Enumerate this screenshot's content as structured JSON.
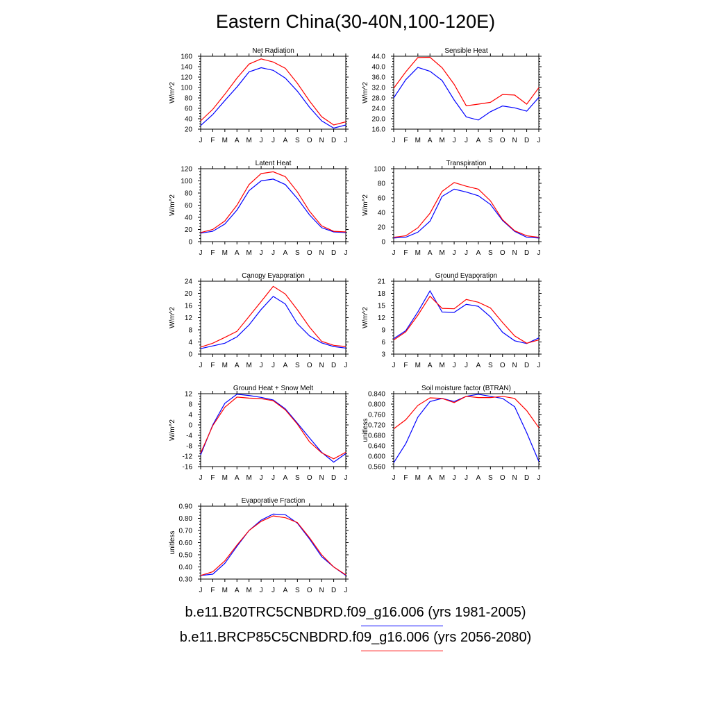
{
  "title": "Eastern China(30-40N,100-120E)",
  "months": [
    "J",
    "F",
    "M",
    "A",
    "M",
    "J",
    "J",
    "A",
    "S",
    "O",
    "N",
    "D",
    "J"
  ],
  "legend": [
    {
      "label": "b.e11.B20TRC5CNBDRD.f09_g16.006 (yrs 1981-2005)",
      "color": "#0000ff"
    },
    {
      "label": "b.e11.BRCP85C5CNBDRD.f09_g16.006 (yrs 2056-2080)",
      "color": "#ff0000"
    }
  ],
  "chart_data": [
    {
      "type": "line",
      "title": "Net Radiation",
      "ylabel": "W/m^2",
      "ylim": [
        20,
        160
      ],
      "yticks": [
        "20",
        "40",
        "60",
        "80",
        "100",
        "120",
        "140",
        "160"
      ],
      "series": [
        {
          "color": "#0000ff",
          "values": [
            27,
            48,
            75,
            101,
            130,
            138,
            133,
            118,
            93,
            62,
            36,
            22,
            28
          ]
        },
        {
          "color": "#ff0000",
          "values": [
            36,
            58,
            87,
            118,
            145,
            155,
            149,
            137,
            108,
            74,
            44,
            28,
            34
          ]
        }
      ]
    },
    {
      "type": "line",
      "title": "Sensible Heat",
      "ylabel": "W/m^2",
      "ylim": [
        16,
        44
      ],
      "yticks": [
        "16.0",
        "20.0",
        "24.0",
        "28.0",
        "32.0",
        "36.0",
        "40.0",
        "44.0"
      ],
      "series": [
        {
          "color": "#0000ff",
          "values": [
            28,
            35,
            39.7,
            38.2,
            34.7,
            27.2,
            20.7,
            19.5,
            22.7,
            24.9,
            24.2,
            22.9,
            28.2
          ]
        },
        {
          "color": "#ff0000",
          "values": [
            31.7,
            38,
            43.5,
            43.6,
            39.6,
            33.2,
            25,
            25.6,
            26.3,
            29.3,
            29.1,
            25.6,
            31.9
          ]
        }
      ]
    },
    {
      "type": "line",
      "title": "Latent Heat",
      "ylabel": "W/m^2",
      "ylim": [
        0,
        120
      ],
      "yticks": [
        "0",
        "20",
        "40",
        "60",
        "80",
        "100",
        "120"
      ],
      "series": [
        {
          "color": "#0000ff",
          "values": [
            14,
            17,
            29,
            52,
            84,
            100,
            103,
            94,
            71,
            44,
            23,
            16,
            15
          ]
        },
        {
          "color": "#ff0000",
          "values": [
            15,
            20,
            34,
            60,
            94,
            112,
            115,
            107,
            82,
            50,
            26,
            17,
            16
          ]
        }
      ]
    },
    {
      "type": "line",
      "title": "Transpiration",
      "ylabel": "W/m^2",
      "ylim": [
        0,
        100
      ],
      "yticks": [
        "0",
        "20",
        "40",
        "60",
        "80",
        "100"
      ],
      "series": [
        {
          "color": "#0000ff",
          "values": [
            5,
            6,
            13,
            28,
            62,
            72,
            68,
            63,
            51,
            29,
            14,
            6,
            5
          ]
        },
        {
          "color": "#ff0000",
          "values": [
            6,
            8,
            19,
            39,
            69,
            81,
            76,
            72,
            56,
            30,
            15,
            8,
            6
          ]
        }
      ]
    },
    {
      "type": "line",
      "title": "Canopy Evaporation",
      "ylabel": "W/m^2",
      "ylim": [
        0,
        24
      ],
      "yticks": [
        "0",
        "4",
        "8",
        "12",
        "16",
        "20",
        "24"
      ],
      "series": [
        {
          "color": "#0000ff",
          "values": [
            1.8,
            2.7,
            3.6,
            5.7,
            9.6,
            14.7,
            19,
            16.5,
            10,
            6,
            3.7,
            2.5,
            2
          ]
        },
        {
          "color": "#ff0000",
          "values": [
            2.3,
            3.6,
            5.5,
            7.5,
            12.4,
            17.3,
            22.3,
            19.8,
            14.6,
            8.9,
            4.2,
            2.9,
            2.5
          ]
        }
      ]
    },
    {
      "type": "line",
      "title": "Ground Evaporation",
      "ylabel": "W/m^2",
      "ylim": [
        3,
        21
      ],
      "yticks": [
        "3",
        "6",
        "9",
        "12",
        "15",
        "18",
        "21"
      ],
      "series": [
        {
          "color": "#0000ff",
          "values": [
            6.8,
            8.8,
            13.4,
            18.6,
            13.4,
            13.3,
            15.3,
            14.8,
            12.2,
            8.4,
            6.3,
            5.6,
            7
          ]
        },
        {
          "color": "#ff0000",
          "values": [
            6.5,
            8.5,
            12.6,
            17.3,
            14.3,
            14.2,
            16.5,
            15.8,
            14.4,
            10.8,
            7.5,
            5.7,
            6.5
          ]
        }
      ]
    },
    {
      "type": "line",
      "title": "Ground Heat + Snow Melt",
      "ylabel": "W/m^2",
      "ylim": [
        -16,
        12
      ],
      "yticks": [
        "-16",
        "-12",
        "-8",
        "-4",
        "0",
        "4",
        "8",
        "12"
      ],
      "series": [
        {
          "color": "#0000ff",
          "values": [
            -11.5,
            0,
            8.3,
            11.8,
            11.3,
            10.6,
            9.6,
            6.2,
            0.7,
            -5,
            -10.5,
            -14.3,
            -11
          ]
        },
        {
          "color": "#ff0000",
          "values": [
            -10.8,
            -0.3,
            6.8,
            10.7,
            10.3,
            10.1,
            9.3,
            5.8,
            0.3,
            -6.5,
            -10.7,
            -13,
            -10.5
          ]
        }
      ]
    },
    {
      "type": "line",
      "title": "Soil moisture factor (BTRAN)",
      "ylabel": "unitless",
      "ylim": [
        0.56,
        0.84
      ],
      "yticks": [
        "0.560",
        "0.600",
        "0.640",
        "0.680",
        "0.720",
        "0.760",
        "0.800",
        "0.840"
      ],
      "series": [
        {
          "color": "#0000ff",
          "values": [
            0.575,
            0.648,
            0.75,
            0.81,
            0.822,
            0.81,
            0.83,
            0.838,
            0.83,
            0.822,
            0.79,
            0.69,
            0.58
          ]
        },
        {
          "color": "#ff0000",
          "values": [
            0.705,
            0.74,
            0.795,
            0.824,
            0.822,
            0.806,
            0.83,
            0.825,
            0.825,
            0.83,
            0.822,
            0.775,
            0.71
          ]
        }
      ]
    },
    {
      "type": "line",
      "title": "Evaporative Fraction",
      "ylabel": "unitless",
      "ylim": [
        0.3,
        0.9
      ],
      "yticks": [
        "0.30",
        "0.40",
        "0.50",
        "0.60",
        "0.70",
        "0.80",
        "0.90"
      ],
      "series": [
        {
          "color": "#0000ff",
          "values": [
            0.33,
            0.34,
            0.43,
            0.57,
            0.7,
            0.785,
            0.835,
            0.83,
            0.76,
            0.63,
            0.485,
            0.4,
            0.33
          ]
        },
        {
          "color": "#ff0000",
          "values": [
            0.33,
            0.36,
            0.45,
            0.58,
            0.7,
            0.775,
            0.82,
            0.805,
            0.765,
            0.64,
            0.5,
            0.4,
            0.335
          ]
        }
      ]
    }
  ]
}
